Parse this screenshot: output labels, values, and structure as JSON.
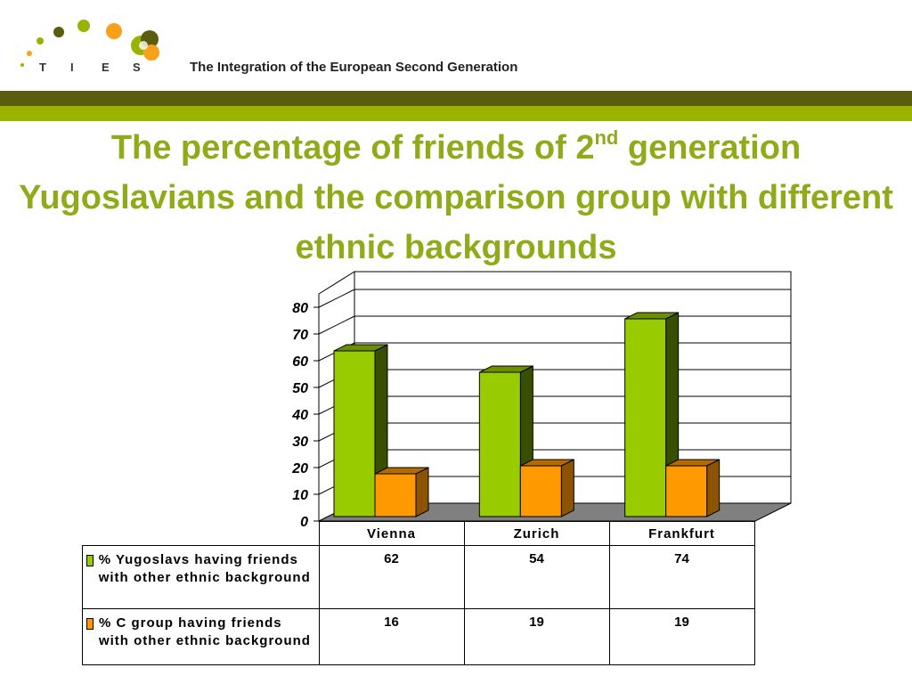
{
  "header": {
    "logo_letters": [
      "T",
      "I",
      "E",
      "S"
    ],
    "tagline": "The Integration of the European Second Generation"
  },
  "slide_title": {
    "part1": "The percentage of friends of 2",
    "superscript": "nd",
    "part2": " generation Yugoslavians and the comparison group with different ethnic backgrounds"
  },
  "colors": {
    "band_dark": "#5c5c10",
    "band_light": "#99b300",
    "title": "#8fab1a",
    "series_green": "#99cc00",
    "series_orange": "#ff9900"
  },
  "chart_data": {
    "type": "bar",
    "categories": [
      "Vienna",
      "Zurich",
      "Frankfurt"
    ],
    "series": [
      {
        "name": "% Yugoslavs having friends with other ethnic background",
        "values": [
          62,
          54,
          74
        ],
        "color": "#99cc00"
      },
      {
        "name": "% C group having friends with other ethnic background",
        "values": [
          16,
          19,
          19
        ],
        "color": "#ff9900"
      }
    ],
    "ylim": [
      0,
      80
    ],
    "yticks": [
      "0",
      "10",
      "20",
      "30",
      "40",
      "50",
      "60",
      "70",
      "80"
    ],
    "grid": true,
    "value_labels": {
      "Vienna": [
        "62",
        "16"
      ],
      "Zurich": [
        "54",
        "19"
      ],
      "Frankfurt": [
        "74",
        "19"
      ]
    }
  }
}
